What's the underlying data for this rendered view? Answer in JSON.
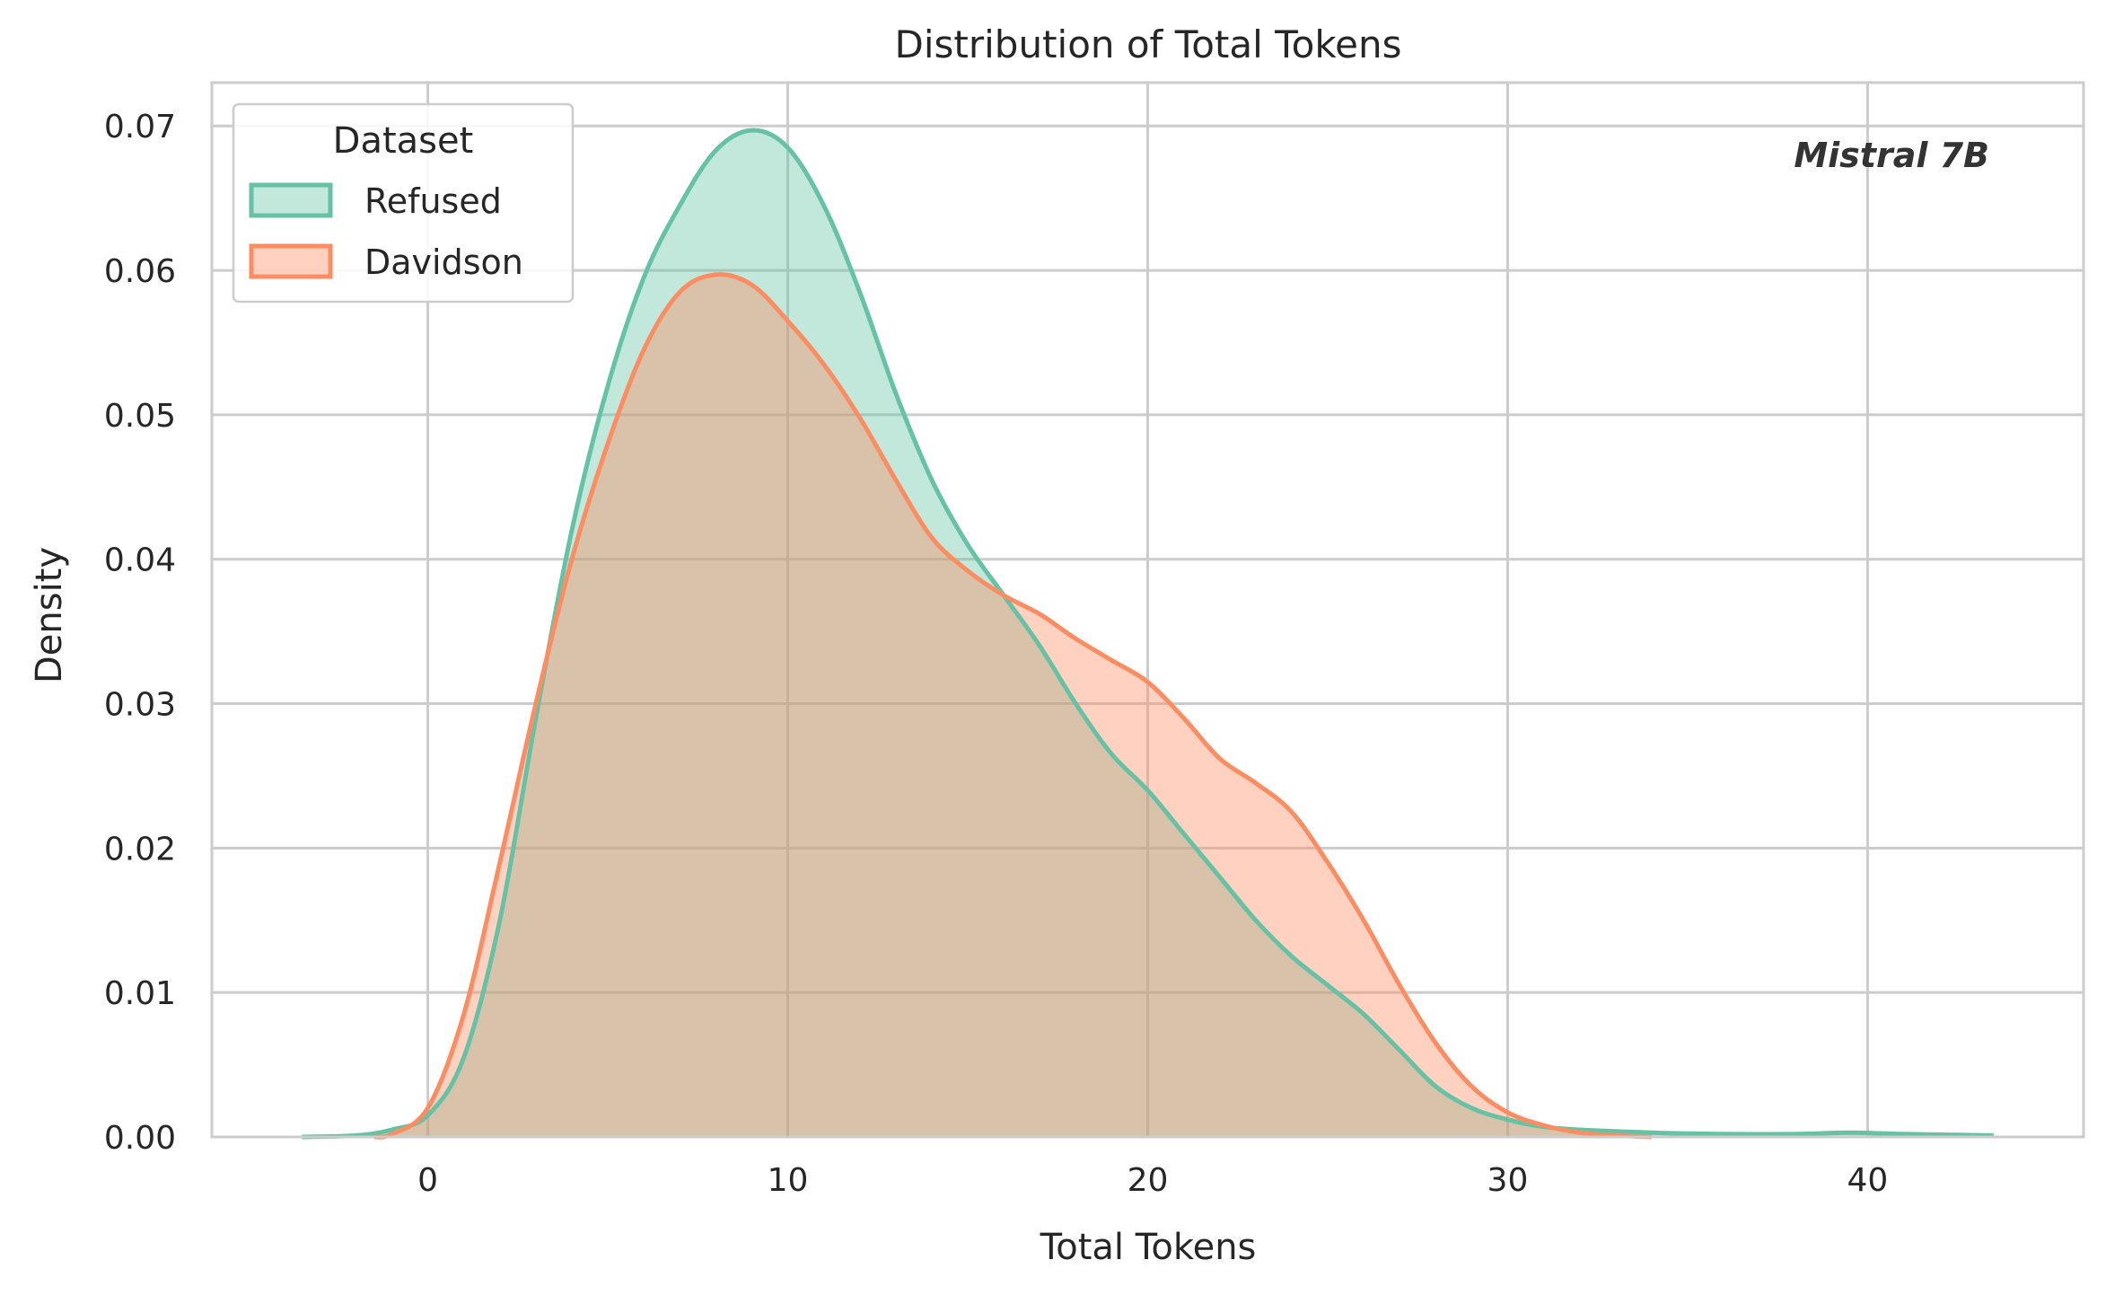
{
  "chart_data": {
    "type": "area",
    "title": "Distribution of Total Tokens",
    "xlabel": "Total Tokens",
    "ylabel": "Density",
    "xlim": [
      -6,
      46
    ],
    "ylim": [
      0,
      0.073
    ],
    "x_ticks": [
      0,
      10,
      20,
      30,
      40
    ],
    "y_ticks": [
      0.0,
      0.01,
      0.02,
      0.03,
      0.04,
      0.05,
      0.06,
      0.07
    ],
    "x_tick_labels": [
      "0",
      "10",
      "20",
      "30",
      "40"
    ],
    "y_tick_labels": [
      "0.00",
      "0.01",
      "0.02",
      "0.03",
      "0.04",
      "0.05",
      "0.06",
      "0.07"
    ],
    "grid": true,
    "legend": {
      "title": "Dataset",
      "placement": "top-left"
    },
    "annotation": "Mistral 7B",
    "series": [
      {
        "name": "Refused",
        "color": "#66c2a5",
        "points": [
          [
            -3.5,
            0.0
          ],
          [
            -2,
            0.0001
          ],
          [
            -1,
            0.0005
          ],
          [
            0,
            0.0015
          ],
          [
            1,
            0.0055
          ],
          [
            2,
            0.015
          ],
          [
            3,
            0.029
          ],
          [
            4,
            0.042
          ],
          [
            5,
            0.052
          ],
          [
            6,
            0.0595
          ],
          [
            7,
            0.0645
          ],
          [
            8,
            0.0683
          ],
          [
            9,
            0.0697
          ],
          [
            10,
            0.0685
          ],
          [
            11,
            0.0645
          ],
          [
            12,
            0.0585
          ],
          [
            13,
            0.0515
          ],
          [
            14,
            0.0455
          ],
          [
            15,
            0.041
          ],
          [
            16,
            0.0375
          ],
          [
            17,
            0.034
          ],
          [
            18,
            0.03
          ],
          [
            19,
            0.0265
          ],
          [
            20,
            0.024
          ],
          [
            21,
            0.021
          ],
          [
            22,
            0.018
          ],
          [
            23,
            0.015
          ],
          [
            24,
            0.0125
          ],
          [
            25,
            0.0105
          ],
          [
            26,
            0.0085
          ],
          [
            27,
            0.006
          ],
          [
            28,
            0.0035
          ],
          [
            29,
            0.002
          ],
          [
            30,
            0.0012
          ],
          [
            31,
            0.0007
          ],
          [
            32,
            0.0005
          ],
          [
            34,
            0.0003
          ],
          [
            36,
            0.0002
          ],
          [
            38,
            0.0002
          ],
          [
            39.5,
            0.0003
          ],
          [
            41,
            0.0002
          ],
          [
            43.5,
            0.0001
          ]
        ]
      },
      {
        "name": "Davidson",
        "color": "#fc8d62",
        "points": [
          [
            -1.5,
            0.0
          ],
          [
            -1,
            0.0002
          ],
          [
            0,
            0.002
          ],
          [
            1,
            0.0085
          ],
          [
            2,
            0.019
          ],
          [
            3,
            0.03
          ],
          [
            4,
            0.04
          ],
          [
            5,
            0.048
          ],
          [
            6,
            0.0545
          ],
          [
            7,
            0.0585
          ],
          [
            8,
            0.0597
          ],
          [
            9,
            0.059
          ],
          [
            10,
            0.0565
          ],
          [
            11,
            0.0535
          ],
          [
            12,
            0.0498
          ],
          [
            13,
            0.0455
          ],
          [
            14,
            0.0415
          ],
          [
            15,
            0.0392
          ],
          [
            16,
            0.0375
          ],
          [
            17,
            0.0362
          ],
          [
            18,
            0.0345
          ],
          [
            19,
            0.033
          ],
          [
            20,
            0.0315
          ],
          [
            21,
            0.029
          ],
          [
            22,
            0.0262
          ],
          [
            23,
            0.0245
          ],
          [
            24,
            0.0225
          ],
          [
            25,
            0.019
          ],
          [
            26,
            0.015
          ],
          [
            27,
            0.0105
          ],
          [
            28,
            0.0065
          ],
          [
            29,
            0.0035
          ],
          [
            30,
            0.0017
          ],
          [
            31,
            0.0008
          ],
          [
            32,
            0.0003
          ],
          [
            33,
            0.0001
          ],
          [
            34,
            0.0
          ]
        ]
      }
    ]
  }
}
